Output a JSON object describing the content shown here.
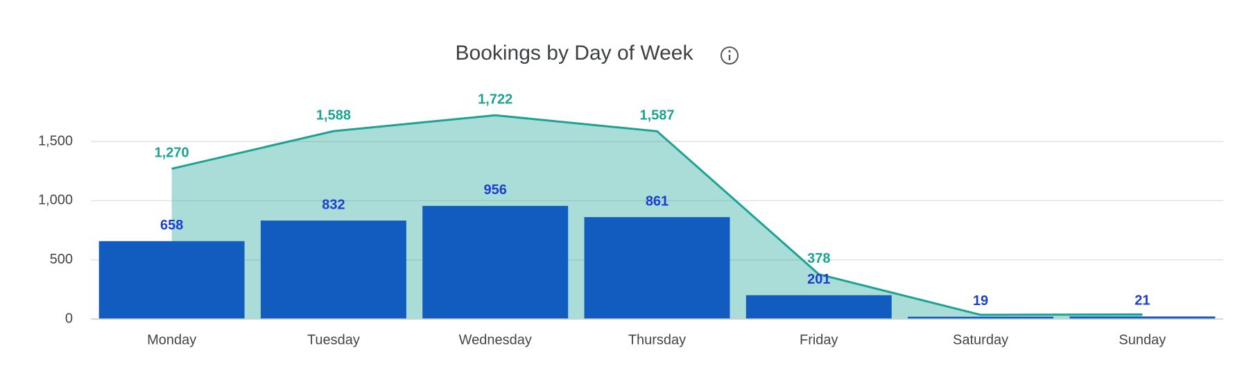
{
  "chart_data": {
    "type": "bar-area",
    "title": "Bookings by Day of Week",
    "categories": [
      "Monday",
      "Tuesday",
      "Wednesday",
      "Thursday",
      "Friday",
      "Saturday",
      "Sunday"
    ],
    "series": [
      {
        "type": "area",
        "color": "#1aa394",
        "values": [
          1270,
          1588,
          1722,
          1587,
          378,
          35,
          38
        ],
        "value_labels": [
          "1,270",
          "1,588",
          "1,722",
          "1,587",
          "378",
          null,
          null
        ]
      },
      {
        "type": "bar",
        "color": "#125bbf",
        "values": [
          658,
          832,
          956,
          861,
          201,
          19,
          21
        ]
      }
    ],
    "ylim": [
      0,
      1700
    ],
    "yticks": [
      0,
      500,
      {
        "value": 1000,
        "label": "1,000"
      },
      {
        "value": 1500,
        "label": "1,500"
      }
    ],
    "grid": true
  }
}
